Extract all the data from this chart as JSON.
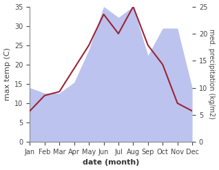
{
  "months": [
    "Jan",
    "Feb",
    "Mar",
    "Apr",
    "May",
    "Jun",
    "Jul",
    "Aug",
    "Sep",
    "Oct",
    "Nov",
    "Dec"
  ],
  "temperature": [
    8,
    12,
    13,
    19,
    25,
    33,
    28,
    35,
    25,
    20,
    10,
    8
  ],
  "precipitation": [
    10,
    9,
    9,
    11,
    17,
    25,
    23,
    25,
    16,
    21,
    21,
    10
  ],
  "temp_color": "#9b2335",
  "precip_fill_color": "#bcc3ee",
  "temp_ylim": [
    0,
    35
  ],
  "precip_ylim": [
    0,
    25
  ],
  "xlabel": "date (month)",
  "ylabel_left": "max temp (C)",
  "ylabel_right": "med. precipitation (kg/m2)",
  "label_fontsize": 8,
  "tick_fontsize": 7,
  "background_color": "#ffffff"
}
